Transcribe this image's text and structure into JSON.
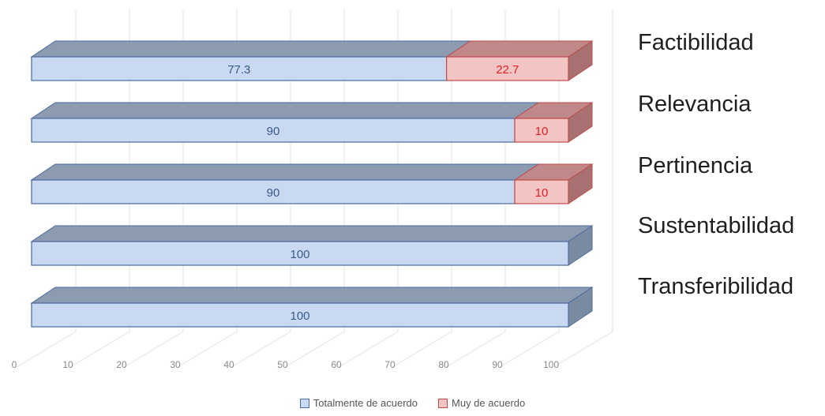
{
  "chart_data": {
    "type": "bar",
    "orientation": "horizontal",
    "stacked": true,
    "style": "3d",
    "categories": [
      "Factibilidad",
      "Relevancia",
      "Pertinencia",
      "Sustentabilidad",
      "Transferibilidad"
    ],
    "series": [
      {
        "name": "Totalmente de acuerdo",
        "values": [
          77.3,
          90,
          90,
          100,
          100
        ],
        "color": "#c9d9f1",
        "label_color": "#3a5a8a"
      },
      {
        "name": "Muy de acuerdo",
        "values": [
          22.7,
          10,
          10,
          0,
          0
        ],
        "color": "#f2c4c4",
        "label_color": "#e02020"
      }
    ],
    "x_ticks": [
      "0",
      "10",
      "20",
      "30",
      "40",
      "50",
      "60",
      "70",
      "80",
      "90",
      "100"
    ],
    "xlim": [
      0,
      100
    ],
    "grid": true,
    "legend_position": "bottom",
    "title": "",
    "xlabel": "",
    "ylabel": ""
  }
}
